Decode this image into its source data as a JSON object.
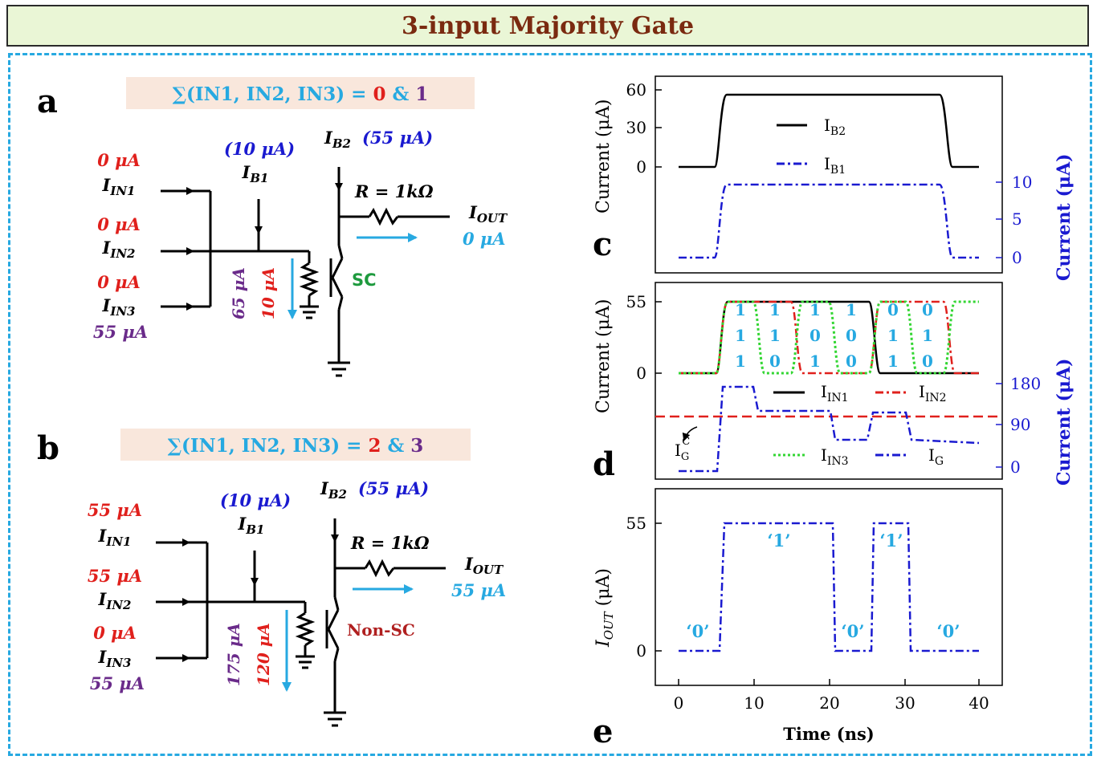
{
  "title": "3-input Majority Gate",
  "panel_a": {
    "letter": "a",
    "eq_prefix": "∑(IN1, IN2, IN3) = ",
    "eq_v1": "0",
    "eq_amp": " & ",
    "eq_v2": "1",
    "ib1_val": "(10 μA)",
    "ib1": "I",
    "ib1_sub": "B1",
    "ib2": "I",
    "ib2_sub": "B2",
    "ib2_val": "(55 μA)",
    "r": "R = 1kΩ",
    "iout": "I",
    "iout_sub": "OUT",
    "iout_val": "0 μA",
    "in1_val": "0 μA",
    "in1": "I",
    "in1_sub": "IN1",
    "in2_val": "0 μA",
    "in2": "I",
    "in2_sub": "IN2",
    "in3_val": "0 μA",
    "in3": "I",
    "in3_sub": "IN3",
    "in3_alt": "55 μA",
    "vert1": "65 μA",
    "vert2": "10 μA",
    "device": "SC"
  },
  "panel_b": {
    "letter": "b",
    "eq_prefix": "∑(IN1, IN2, IN3) = ",
    "eq_v1": "2",
    "eq_amp": " & ",
    "eq_v2": "3",
    "ib1_val": "(10 μA)",
    "ib1": "I",
    "ib1_sub": "B1",
    "ib2": "I",
    "ib2_sub": "B2",
    "ib2_val": "(55 μA)",
    "r": "R = 1kΩ",
    "iout": "I",
    "iout_sub": "OUT",
    "iout_val": "55 μA",
    "in1_val": "55 μA",
    "in1": "I",
    "in1_sub": "IN1",
    "in2_val": "55 μA",
    "in2": "I",
    "in2_sub": "IN2",
    "in3_val": "0 μA",
    "in3": "I",
    "in3_sub": "IN3",
    "in3_alt": "55 μA",
    "vert1": "175 μA",
    "vert2": "120 μA",
    "device": "Non-SC"
  },
  "panel_c": {
    "letter": "c",
    "ylabel_left": "Current (μA)",
    "ylabel_right": "Current (μA)",
    "left_ticks": [
      "60",
      "30",
      "0"
    ],
    "right_ticks": [
      "10",
      "5",
      "0"
    ],
    "legend_ib2": "I",
    "legend_ib2_sub": "B2",
    "legend_ib1": "I",
    "legend_ib1_sub": "B1"
  },
  "panel_d": {
    "letter": "d",
    "ylabel_left": "Current (μA)",
    "ylabel_right": "Current (μA)",
    "left_ticks": [
      "55",
      "0"
    ],
    "right_ticks": [
      "180",
      "90",
      "0"
    ],
    "legend_in1": "I",
    "legend_in1_sub": "IN1",
    "legend_in2": "I",
    "legend_in2_sub": "IN2",
    "legend_in3": "I",
    "legend_in3_sub": "IN3",
    "legend_ig": "I",
    "legend_ig_sub": "G",
    "igc": "I",
    "igc_sub": "G",
    "igc_sup": "C",
    "combos": [
      [
        "1",
        "1",
        "1"
      ],
      [
        "1",
        "1",
        "0"
      ],
      [
        "1",
        "0",
        "1"
      ],
      [
        "1",
        "0",
        "0"
      ],
      [
        "0",
        "1",
        "1"
      ],
      [
        "0",
        "1",
        "0"
      ]
    ]
  },
  "panel_e": {
    "letter": "e",
    "ylabel": "I",
    "ylabel_sub": "OUT",
    "ylabel_unit": " (μA)",
    "left_ticks": [
      "55",
      "0"
    ],
    "x_ticks": [
      "0",
      "10",
      "20",
      "30",
      "40"
    ],
    "xlabel": "Time (ns)",
    "logic": [
      "‘0’",
      "‘1’",
      "‘0’",
      "‘1’",
      "‘0’"
    ]
  },
  "chart_data": [
    {
      "type": "line",
      "title": "",
      "xlabel": "",
      "ylabel": "Current (μA)",
      "ylabel_right": "Current (μA)",
      "xlim": [
        0,
        40
      ],
      "series": [
        {
          "name": "I_B2",
          "axis": "left",
          "x": [
            0,
            5,
            6,
            35,
            36,
            40
          ],
          "y": [
            0,
            0,
            55,
            55,
            0,
            0
          ]
        },
        {
          "name": "I_B1",
          "axis": "right",
          "x": [
            0,
            5,
            6,
            35,
            36,
            40
          ],
          "y": [
            0,
            0,
            10,
            10,
            0,
            0
          ]
        }
      ]
    },
    {
      "type": "line",
      "title": "",
      "xlabel": "",
      "ylabel": "Current (μA)",
      "ylabel_right": "Current (μA)",
      "xlim": [
        0,
        40
      ],
      "series": [
        {
          "name": "I_IN1",
          "axis": "left",
          "x": [
            0,
            5,
            6,
            25,
            26,
            40
          ],
          "y": [
            0,
            0,
            55,
            55,
            0,
            0
          ]
        },
        {
          "name": "I_IN2",
          "axis": "left",
          "x": [
            0,
            5,
            6,
            15,
            16,
            25,
            26,
            35,
            36,
            40
          ],
          "y": [
            0,
            0,
            55,
            55,
            0,
            0,
            55,
            55,
            0,
            0
          ]
        },
        {
          "name": "I_IN3",
          "axis": "left",
          "x": [
            0,
            5,
            6,
            10,
            11,
            15,
            16,
            20,
            21,
            25,
            26,
            30,
            31,
            35,
            36,
            40
          ],
          "y": [
            0,
            0,
            55,
            55,
            0,
            0,
            55,
            55,
            0,
            0,
            55,
            55,
            0,
            0,
            55,
            55
          ]
        },
        {
          "name": "I_G",
          "axis": "right",
          "x": [
            0,
            5,
            6,
            10,
            11,
            20,
            21,
            25,
            26,
            30,
            31,
            40
          ],
          "y": [
            0,
            0,
            175,
            175,
            120,
            120,
            65,
            65,
            120,
            120,
            65,
            65
          ]
        },
        {
          "name": "I_G^C",
          "axis": "right",
          "x": [
            0,
            40
          ],
          "y": [
            112,
            112
          ]
        }
      ]
    },
    {
      "type": "line",
      "title": "",
      "xlabel": "Time (ns)",
      "ylabel": "I_OUT (μA)",
      "xlim": [
        0,
        40
      ],
      "series": [
        {
          "name": "I_OUT",
          "x": [
            0,
            5.5,
            6,
            20.5,
            21,
            25.5,
            26,
            30.5,
            31,
            40
          ],
          "y": [
            0,
            0,
            55,
            55,
            0,
            0,
            55,
            55,
            0,
            0
          ]
        }
      ]
    }
  ]
}
